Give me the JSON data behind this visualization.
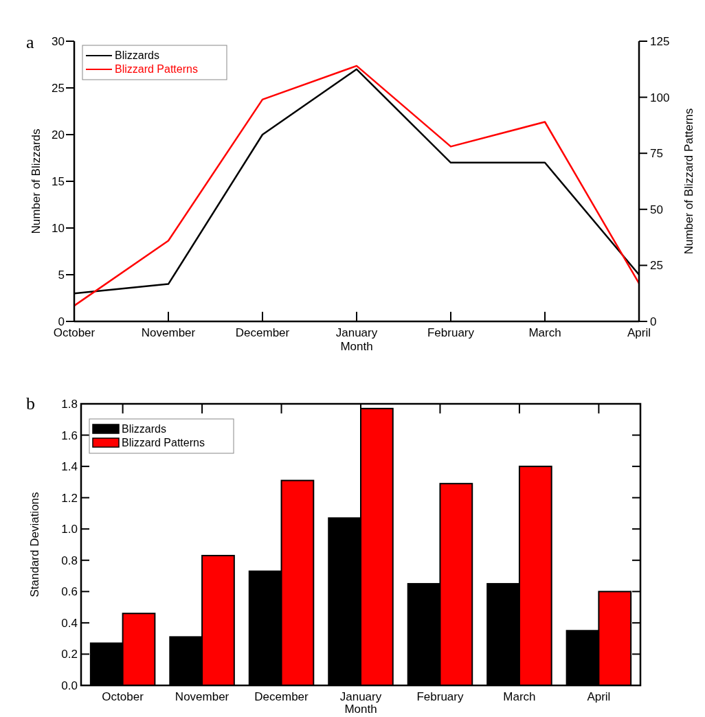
{
  "chart_data": [
    {
      "type": "line",
      "title": "a",
      "xlabel": "Month",
      "ylabel": "Number of Blizzards",
      "y2label": "Number of Blizzard Patterns",
      "categories": [
        "October",
        "November",
        "December",
        "January",
        "February",
        "March",
        "April"
      ],
      "series": [
        {
          "name": "Blizzards",
          "color": "#000000",
          "values": [
            3,
            4,
            20,
            27,
            17,
            17,
            5
          ]
        },
        {
          "name": "Blizzard Patterns",
          "color": "#ff0000",
          "axis": "y2",
          "values": [
            7,
            36,
            99,
            114,
            78,
            89,
            17
          ]
        }
      ],
      "ylim": [
        0,
        30
      ],
      "yticks": [
        0,
        5,
        10,
        15,
        20,
        25,
        30
      ],
      "y2lim": [
        0,
        125
      ],
      "y2ticks": [
        0,
        25,
        50,
        75,
        100,
        125
      ],
      "legend": "top left",
      "grid": false,
      "line_style": "solid",
      "marker": "none"
    },
    {
      "type": "bar",
      "title": "b",
      "xlabel": "Month",
      "ylabel": "Standard Deviations",
      "categories": [
        "October",
        "November",
        "December",
        "January",
        "February",
        "March",
        "April"
      ],
      "series": [
        {
          "name": "Blizzards",
          "color": "#000000",
          "values": [
            0.27,
            0.31,
            0.73,
            1.07,
            0.65,
            0.65,
            0.35
          ]
        },
        {
          "name": "Blizzard Patterns",
          "color": "#ff0000",
          "values": [
            0.46,
            0.83,
            1.31,
            1.77,
            1.29,
            1.4,
            0.6
          ]
        }
      ],
      "ylim": [
        0,
        1.8
      ],
      "yticks": [
        {
          "value": 0,
          "label": "0.0"
        },
        0.2,
        0.4,
        0.6,
        0.8,
        {
          "value": 1,
          "label": "1.0"
        },
        1.2,
        1.4,
        1.6,
        1.8
      ],
      "legend": "top left",
      "grid": false
    }
  ]
}
